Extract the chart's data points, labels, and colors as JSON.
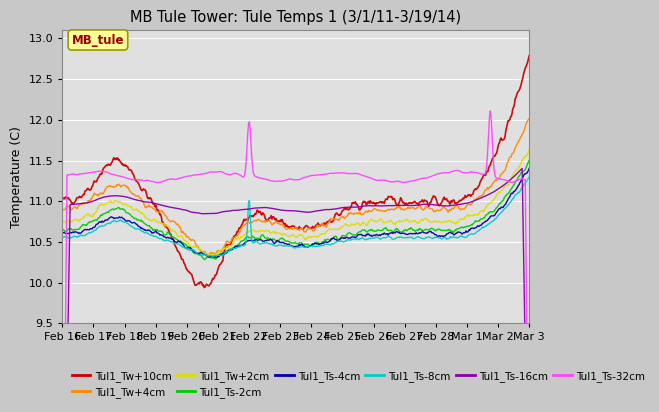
{
  "title": "MB Tule Tower: Tule Temps 1 (3/1/11-3/19/14)",
  "ylabel": "Temperature (C)",
  "ylim": [
    9.5,
    13.1
  ],
  "xlim": [
    0,
    30
  ],
  "fig_facecolor": "#c8c8c8",
  "ax_facecolor": "#e0e0e0",
  "xtick_labels": [
    "Feb 16",
    "Feb 17",
    "Feb 18",
    "Feb 19",
    "Feb 20",
    "Feb 21",
    "Feb 22",
    "Feb 23",
    "Feb 24",
    "Feb 25",
    "Feb 26",
    "Feb 27",
    "Feb 28",
    "Mar 1",
    "Mar 2",
    "Mar 3"
  ],
  "xtick_positions": [
    0,
    2,
    4,
    6,
    8,
    10,
    12,
    14,
    16,
    18,
    20,
    22,
    24,
    26,
    28,
    30
  ],
  "yticks": [
    9.5,
    10.0,
    10.5,
    11.0,
    11.5,
    12.0,
    12.5,
    13.0
  ],
  "series": [
    {
      "name": "Tul1_Tw+10cm",
      "color": "#cc0000",
      "lw": 1.2
    },
    {
      "name": "Tul1_Tw+4cm",
      "color": "#ff8800",
      "lw": 1.0
    },
    {
      "name": "Tul1_Tw+2cm",
      "color": "#dddd00",
      "lw": 1.0
    },
    {
      "name": "Tul1_Ts-2cm",
      "color": "#00cc00",
      "lw": 1.0
    },
    {
      "name": "Tul1_Ts-4cm",
      "color": "#0000aa",
      "lw": 1.0
    },
    {
      "name": "Tul1_Ts-8cm",
      "color": "#00cccc",
      "lw": 1.0
    },
    {
      "name": "Tul1_Ts-16cm",
      "color": "#8800aa",
      "lw": 1.0
    },
    {
      "name": "Tul1_Ts-32cm",
      "color": "#ff44ff",
      "lw": 1.0
    }
  ],
  "legend_label": "MB_tule",
  "legend_label_color": "#990000",
  "legend_box_facecolor": "#ffff99",
  "legend_box_edgecolor": "#999900"
}
